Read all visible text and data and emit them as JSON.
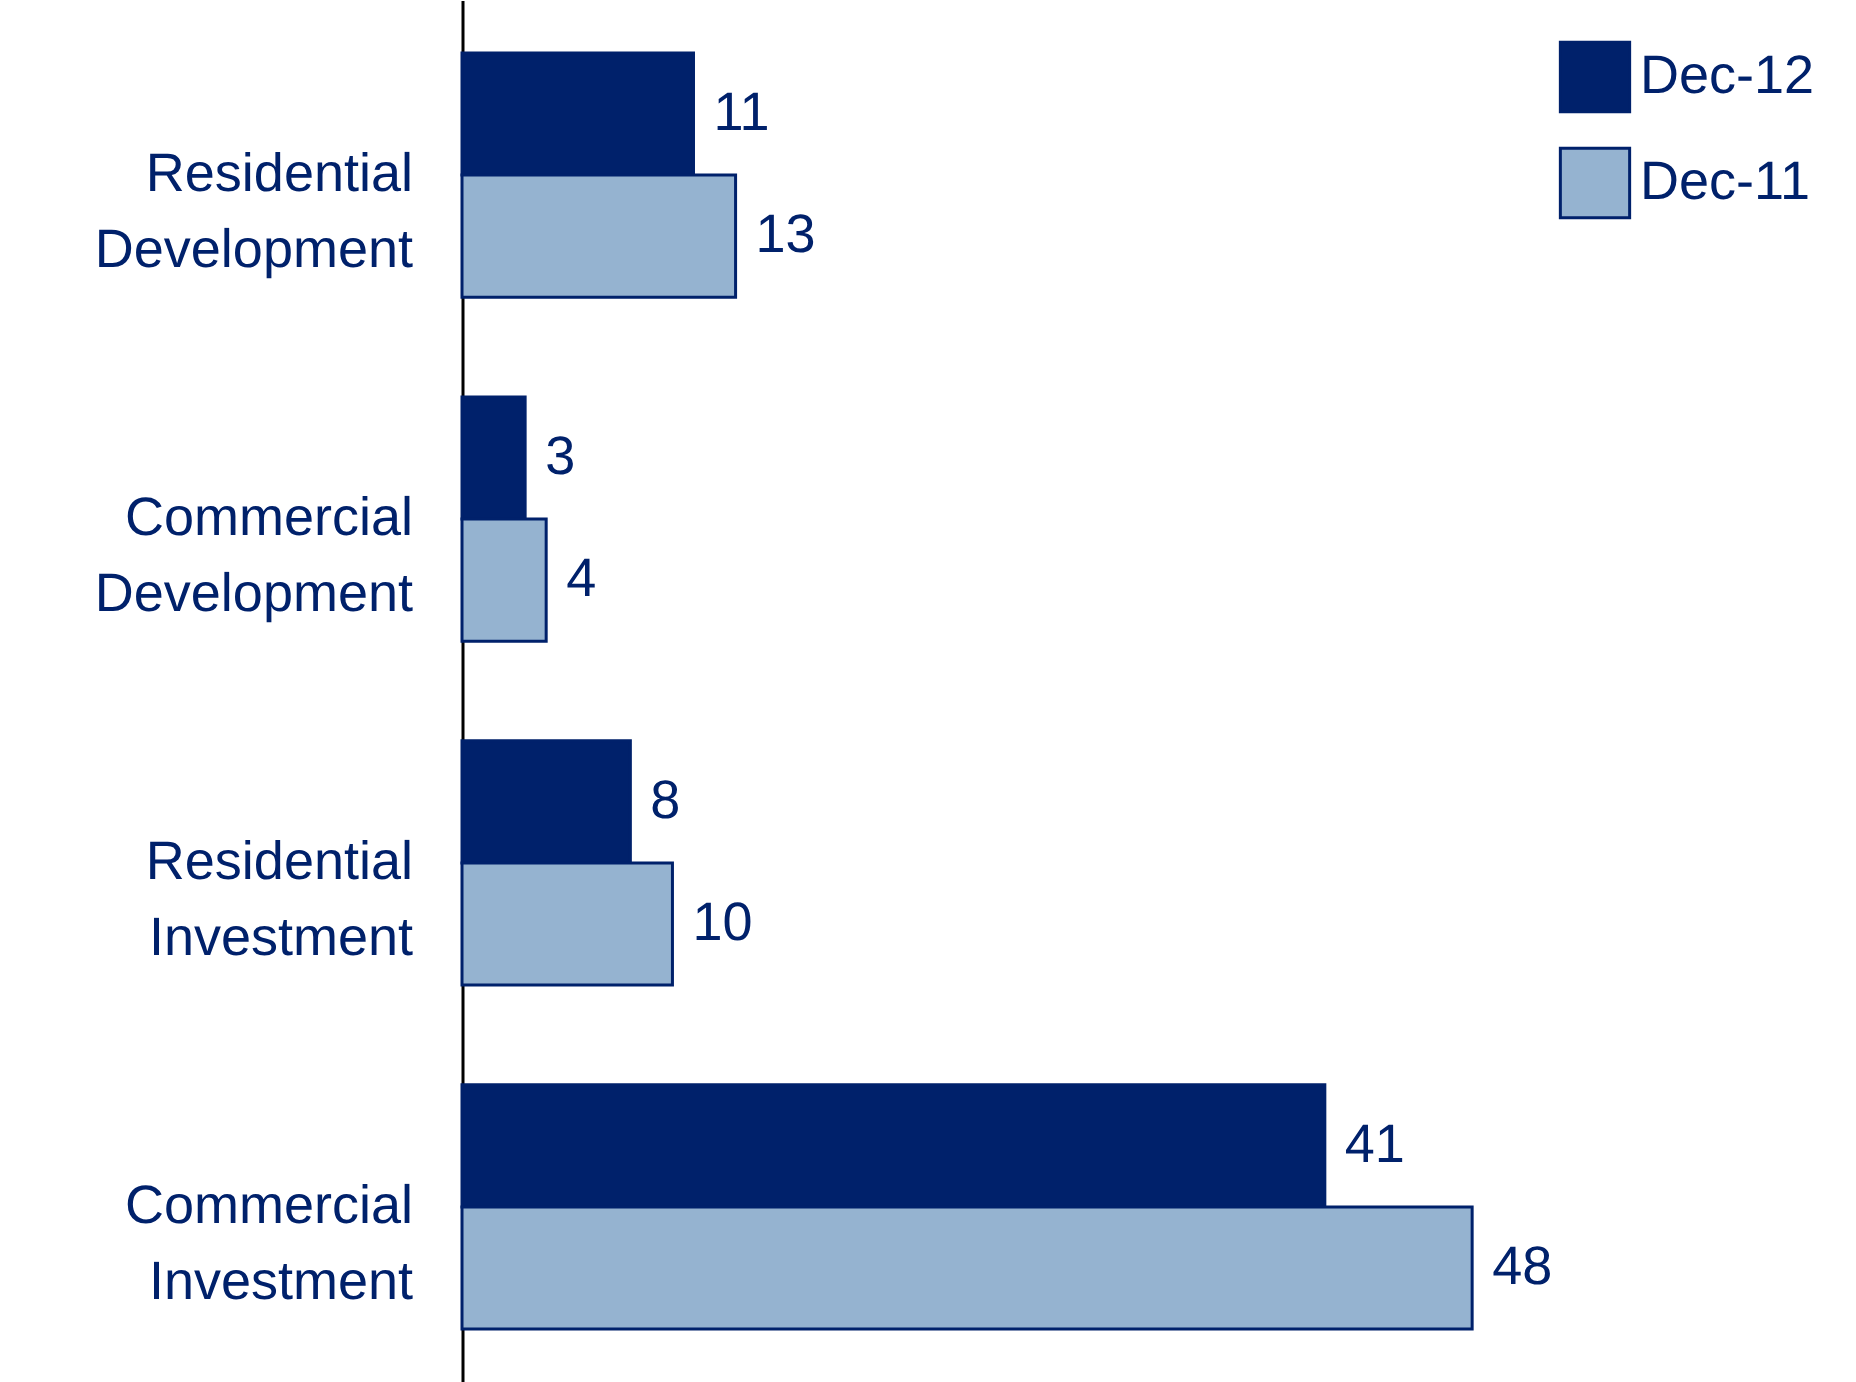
{
  "chart_data": {
    "type": "bar",
    "orientation": "horizontal",
    "categories": [
      "Residential Development",
      "Commercial Development",
      "Residential Investment",
      "Commercial Investment"
    ],
    "series": [
      {
        "name": "Dec-12",
        "color": "#00216b",
        "values": [
          11,
          3,
          8,
          41
        ]
      },
      {
        "name": "Dec-11",
        "color": "#95b3d0",
        "values": [
          13,
          4,
          10,
          48
        ]
      }
    ],
    "data_labels": true,
    "legend": "top right",
    "tick_labels": "y"
  }
}
